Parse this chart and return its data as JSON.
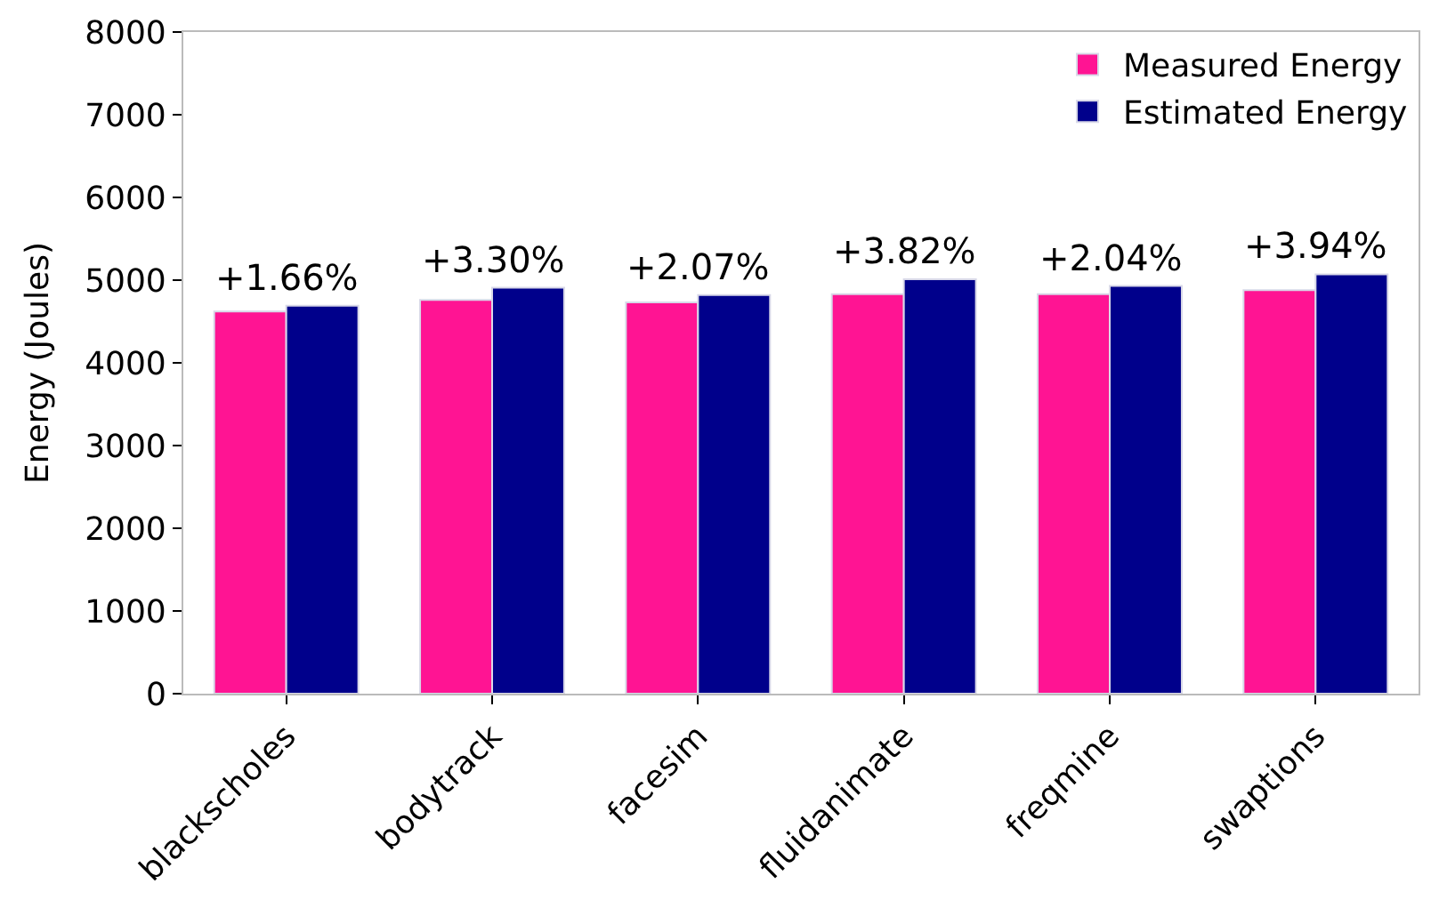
{
  "chart_data": {
    "type": "bar",
    "ylabel": "Energy (Joules)",
    "categories": [
      "blackscholes",
      "bodytrack",
      "facesim",
      "fluidanimate",
      "freqmine",
      "swaptions"
    ],
    "series": [
      {
        "name": "Measured Energy",
        "color": "#ff1493",
        "values": [
          4620,
          4760,
          4730,
          4830,
          4830,
          4880
        ]
      },
      {
        "name": "Estimated Energy",
        "color": "#00008b",
        "values": [
          4690,
          4910,
          4820,
          5010,
          4930,
          5070
        ]
      }
    ],
    "ylim": [
      0,
      8000
    ],
    "yticks": [
      0,
      1000,
      2000,
      3000,
      4000,
      5000,
      6000,
      7000,
      8000
    ],
    "annotations": [
      {
        "text": "+1.66%",
        "x": "blackscholes",
        "y": 4690
      },
      {
        "text": "+3.30%",
        "x": "bodytrack",
        "y": 4910
      },
      {
        "text": "+2.07%",
        "x": "facesim",
        "y": 4820
      },
      {
        "text": "+3.82%",
        "x": "fluidanimate",
        "y": 5010
      },
      {
        "text": "+2.04%",
        "x": "freqmine",
        "y": 4930
      },
      {
        "text": "+3.94%",
        "x": "swaptions",
        "y": 5070
      }
    ],
    "legend": "top right"
  }
}
